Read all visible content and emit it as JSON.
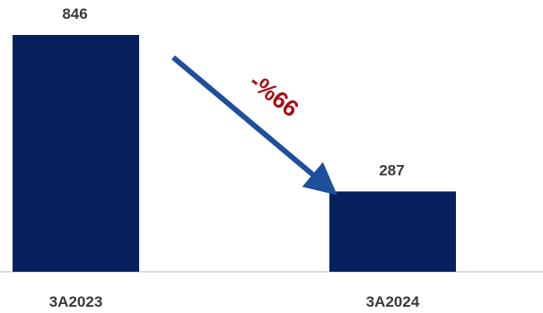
{
  "chart_data": {
    "type": "bar",
    "title": "",
    "xlabel": "",
    "ylabel": "",
    "categories": [
      "3A2023",
      "3A2024"
    ],
    "values": [
      846,
      287
    ],
    "data_labels": [
      "846",
      "287"
    ],
    "ylim": [
      0,
      846
    ],
    "grid": false,
    "legend": "none",
    "annotation": {
      "text": "-%66",
      "color": "#a50f15",
      "arrow_color": "#1f4e9c"
    },
    "bar_color": "#06215e",
    "baseline_color": "#d0d0d0"
  }
}
